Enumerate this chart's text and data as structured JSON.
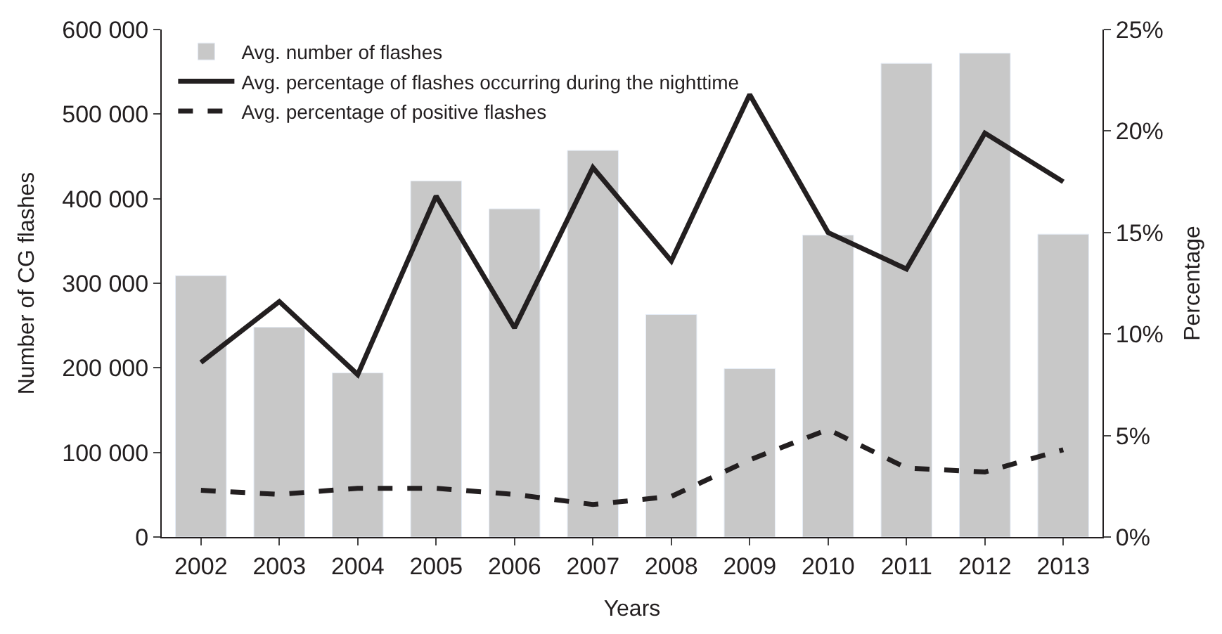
{
  "chart_data": {
    "type": "bar",
    "xlabel": "Years",
    "ylabel": "Number of CG flashes",
    "y2label": "Percentage",
    "categories": [
      "2002",
      "2003",
      "2004",
      "2005",
      "2006",
      "2007",
      "2008",
      "2009",
      "2010",
      "2011",
      "2012",
      "2013"
    ],
    "series": [
      {
        "name": "Avg. number of flashes",
        "color": "#c8c8c8",
        "values": [
          309000,
          248000,
          194000,
          421000,
          388000,
          457000,
          263000,
          199000,
          357000,
          560000,
          572000,
          358000
        ]
      },
      {
        "name": "Avg. percentage of flashes occurring during the nighttime",
        "type": "line",
        "axis": "y2",
        "color": "#231f20",
        "line_style": "solid",
        "values": [
          8.6,
          11.6,
          8.0,
          16.8,
          10.3,
          18.2,
          13.6,
          21.8,
          15.0,
          13.2,
          19.9,
          17.5
        ]
      },
      {
        "name": "Avg. percentage of positive flashes",
        "type": "line",
        "axis": "y2",
        "color": "#231f20",
        "line_style": "dashed",
        "values": [
          2.3,
          2.1,
          2.4,
          2.4,
          2.1,
          1.6,
          2.0,
          3.8,
          5.3,
          3.4,
          3.2,
          4.3
        ]
      }
    ],
    "ylim": [
      0,
      600000
    ],
    "yticks": [
      0,
      {
        "value": 100000,
        "label": "100 000"
      },
      {
        "value": 200000,
        "label": "200 000"
      },
      {
        "value": 300000,
        "label": "300 000"
      },
      {
        "value": 400000,
        "label": "400 000"
      },
      {
        "value": 500000,
        "label": "500 000"
      },
      {
        "value": 600000,
        "label": "600 000"
      }
    ],
    "y2lim": [
      0,
      25
    ],
    "y2ticks": [
      {
        "value": 0,
        "label": "0%"
      },
      {
        "value": 5,
        "label": "5%"
      },
      {
        "value": 10,
        "label": "10%"
      },
      {
        "value": 15,
        "label": "15%"
      },
      {
        "value": 20,
        "label": "20%"
      },
      {
        "value": 25,
        "label": "25%"
      }
    ],
    "legend": "top left",
    "marker": "none"
  }
}
